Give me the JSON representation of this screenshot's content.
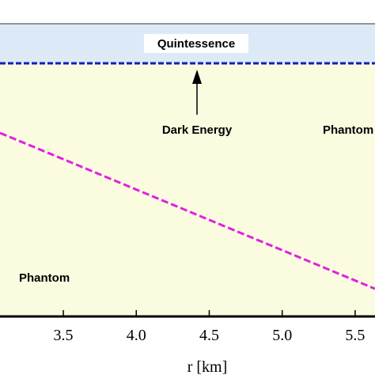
{
  "chart_data": {
    "type": "line",
    "xlabel": "r [km]",
    "annotations": [
      "Quintessence",
      "Dark Energy",
      "Phantom",
      "Phantom"
    ],
    "x": [
      3.066,
      5.636
    ],
    "series": [
      {
        "color": "#e020e0",
        "values": [
          -1.44,
          -2.425
        ]
      }
    ],
    "reference_line": -1,
    "reference_color": "#1020b0",
    "region_colors": [
      "#dceaf8",
      "#fbfbdf"
    ],
    "xlim": [
      3.066,
      5.636
    ],
    "ylim": [
      -2.6,
      -0.75
    ],
    "xticks": [
      3.5,
      {
        "value": 4,
        "label": "4.0"
      },
      4.5,
      {
        "value": 5,
        "label": "5.0"
      },
      5.5
    ]
  }
}
